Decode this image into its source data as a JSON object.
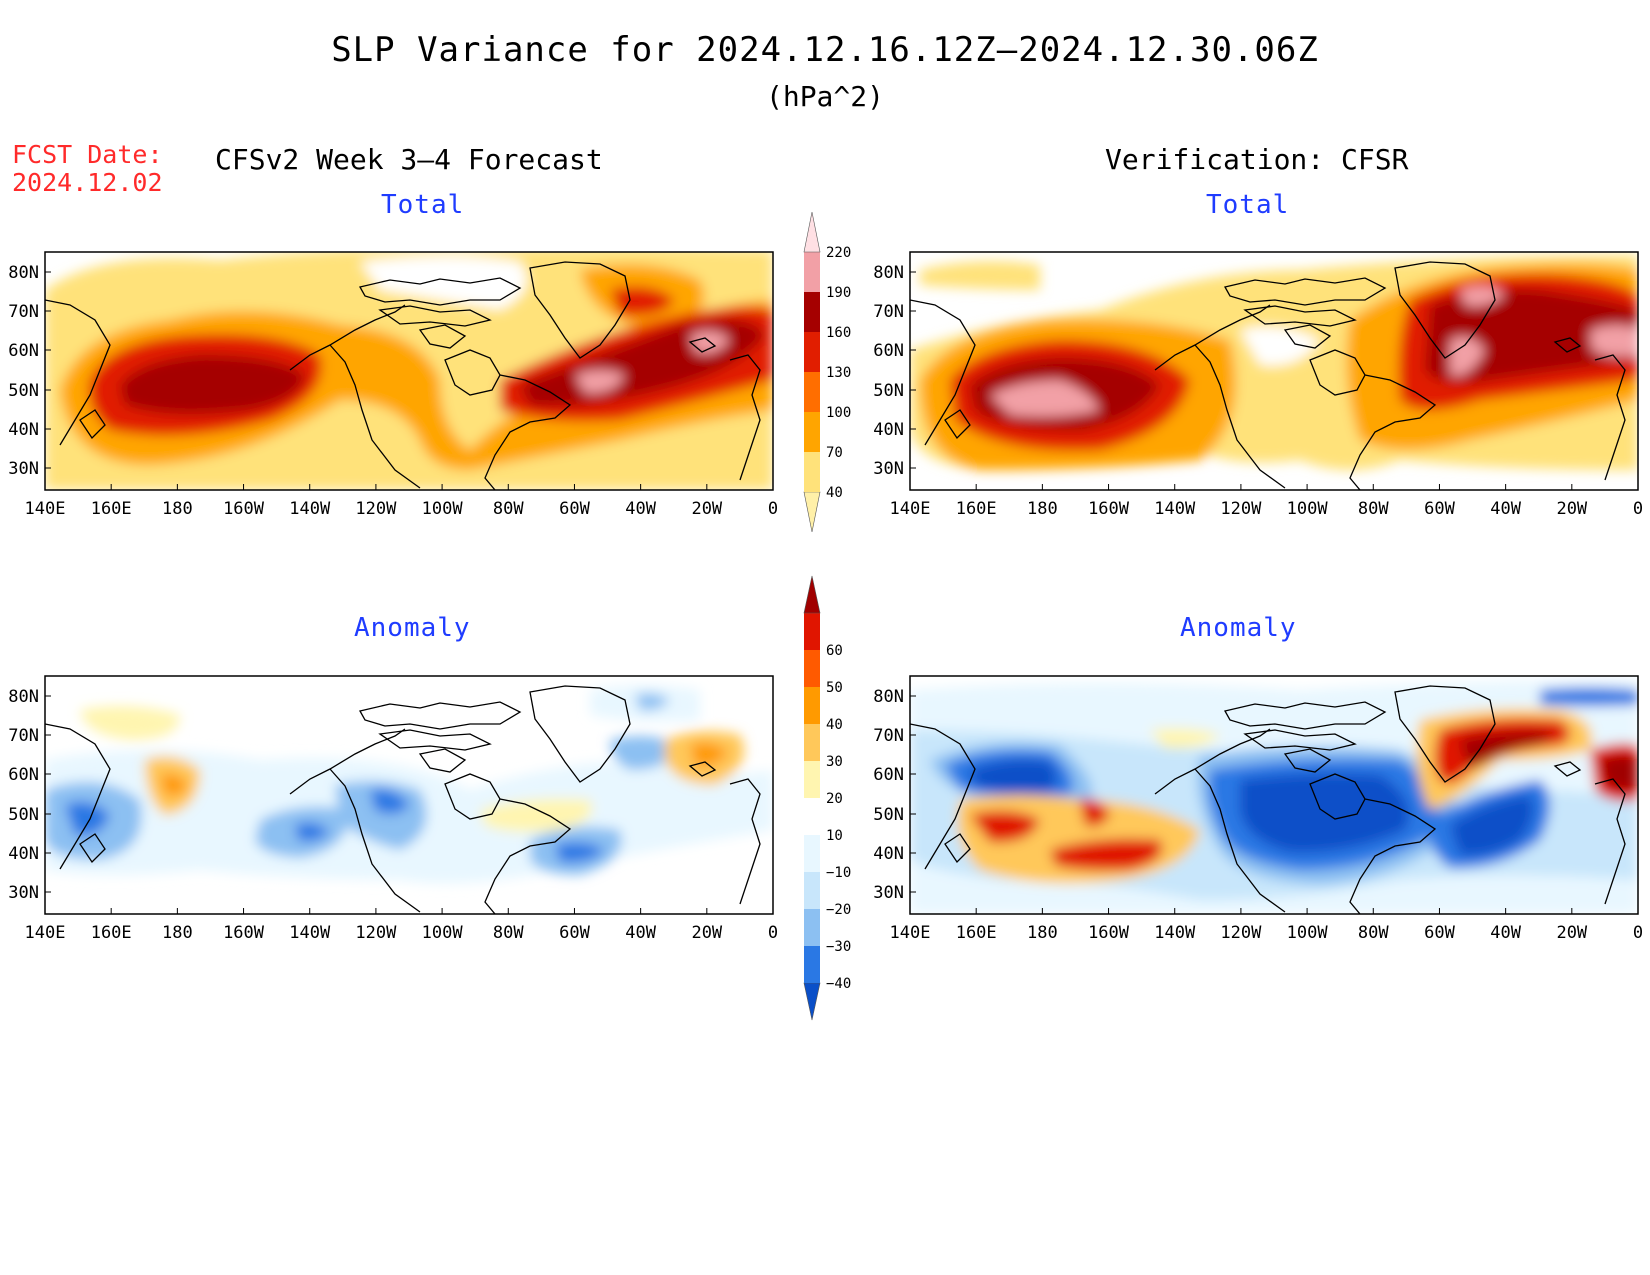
{
  "title": "SLP Variance for 2024.12.16.12Z–2024.12.30.06Z",
  "units": "(hPa^2)",
  "forecast_date_label": "FCST Date:",
  "forecast_date": "2024.12.02",
  "left_column_title": "CFSv2 Week 3–4 Forecast",
  "right_column_title": "Verification: CFSR",
  "panels": [
    {
      "title": "Total"
    },
    {
      "title": "Total"
    },
    {
      "title": "Anomaly"
    },
    {
      "title": "Anomaly"
    }
  ],
  "lon_ticks": [
    "140E",
    "160E",
    "180",
    "160W",
    "140W",
    "120W",
    "100W",
    "80W",
    "60W",
    "40W",
    "20W",
    "0"
  ],
  "lat_ticks": [
    "80N",
    "70N",
    "60N",
    "50N",
    "40N",
    "30N"
  ],
  "total_colorbar": {
    "labels": [
      "40",
      "70",
      "100",
      "130",
      "160",
      "190",
      "220"
    ],
    "colors": [
      "#fff0a8",
      "#ffe27a",
      "#ffa500",
      "#ff6e00",
      "#e11e00",
      "#a50000",
      "#f2a0a6",
      "#ffe0e4"
    ]
  },
  "anomaly_colorbar": {
    "labels": [
      "−40",
      "−30",
      "−20",
      "−10",
      "10",
      "20",
      "30",
      "40",
      "50",
      "60"
    ],
    "colors": [
      "#0a4fc8",
      "#2a78e4",
      "#8cc0f2",
      "#c8e6fb",
      "#e8f7ff",
      "#ffffff",
      "#fff5b0",
      "#ffc85a",
      "#ff9a00",
      "#ff5a00",
      "#e01500",
      "#a00000"
    ]
  }
}
